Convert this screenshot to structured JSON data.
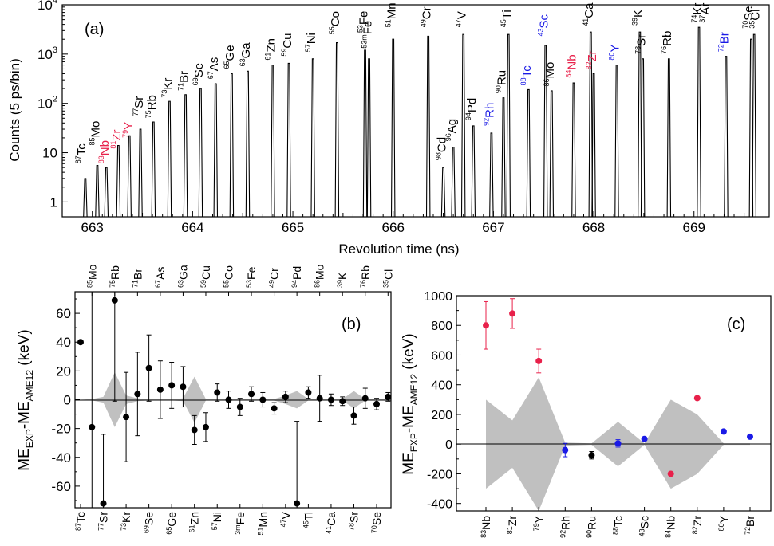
{
  "chart_data": [
    {
      "type": "bar",
      "panel_label": "(a)",
      "xlabel": "Revolution time (ns)",
      "ylabel": "Counts (5 ps/bin)",
      "xlim": [
        662.7,
        669.75
      ],
      "ylim": [
        0.5,
        10000
      ],
      "yscale": "log",
      "x_ticks": [
        663,
        664,
        665,
        666,
        667,
        668,
        669
      ],
      "y_ticks": [
        {
          "value": 1,
          "base": "1",
          "exp": ""
        },
        {
          "value": 10,
          "base": "10",
          "exp": ""
        },
        {
          "value": 100,
          "base": "10",
          "exp": "2"
        },
        {
          "value": 1000,
          "base": "10",
          "exp": "3"
        },
        {
          "value": 10000,
          "base": "10",
          "exp": "4"
        }
      ],
      "colors": {
        "black": "#000000",
        "red": "#e8204a",
        "blue": "#1a1ae6"
      },
      "peaks": [
        {
          "x": 662.93,
          "y": 3
        },
        {
          "x": 663.05,
          "y": 5.5
        },
        {
          "x": 663.14,
          "y": 5
        },
        {
          "x": 663.26,
          "y": 14
        },
        {
          "x": 663.37,
          "y": 22
        },
        {
          "x": 663.48,
          "y": 30
        },
        {
          "x": 663.61,
          "y": 42
        },
        {
          "x": 663.77,
          "y": 110
        },
        {
          "x": 663.93,
          "y": 150
        },
        {
          "x": 664.08,
          "y": 200
        },
        {
          "x": 664.23,
          "y": 250
        },
        {
          "x": 664.39,
          "y": 400
        },
        {
          "x": 664.55,
          "y": 450
        },
        {
          "x": 664.8,
          "y": 600
        },
        {
          "x": 664.96,
          "y": 650
        },
        {
          "x": 665.2,
          "y": 800
        },
        {
          "x": 665.44,
          "y": 1700
        },
        {
          "x": 665.72,
          "y": 1200
        },
        {
          "x": 665.76,
          "y": 800
        },
        {
          "x": 666.0,
          "y": 2000
        },
        {
          "x": 666.35,
          "y": 2300
        },
        {
          "x": 666.5,
          "y": 5
        },
        {
          "x": 666.6,
          "y": 13
        },
        {
          "x": 666.7,
          "y": 2500
        },
        {
          "x": 666.8,
          "y": 35
        },
        {
          "x": 666.98,
          "y": 25
        },
        {
          "x": 667.1,
          "y": 130
        },
        {
          "x": 667.15,
          "y": 2500
        },
        {
          "x": 667.35,
          "y": 190
        },
        {
          "x": 667.52,
          "y": 1500
        },
        {
          "x": 667.58,
          "y": 180
        },
        {
          "x": 667.8,
          "y": 260
        },
        {
          "x": 667.97,
          "y": 2800
        },
        {
          "x": 668.0,
          "y": 400
        },
        {
          "x": 668.23,
          "y": 600
        },
        {
          "x": 668.46,
          "y": 2800
        },
        {
          "x": 668.49,
          "y": 800
        },
        {
          "x": 668.75,
          "y": 800
        },
        {
          "x": 669.05,
          "y": 3500
        },
        {
          "x": 669.32,
          "y": 900
        },
        {
          "x": 669.57,
          "y": 2000
        },
        {
          "x": 669.6,
          "y": 2500
        }
      ],
      "labels": [
        {
          "mass": "87",
          "sym": "Tc",
          "color": "black",
          "x": 662.9,
          "y": 6
        },
        {
          "mass": "85",
          "sym": "Mo",
          "color": "black",
          "x": 663.04,
          "y": 14
        },
        {
          "mass": "83",
          "sym": "Nb",
          "color": "red",
          "x": 663.13,
          "y": 6
        },
        {
          "mass": "81",
          "sym": "Zr",
          "color": "red",
          "x": 663.25,
          "y": 12
        },
        {
          "mass": "79",
          "sym": "Y",
          "color": "red",
          "x": 663.37,
          "y": 20
        },
        {
          "mass": "77",
          "sym": "Sr",
          "color": "black",
          "x": 663.47,
          "y": 55
        },
        {
          "mass": "75",
          "sym": "Rb",
          "color": "black",
          "x": 663.6,
          "y": 50
        },
        {
          "mass": "73",
          "sym": "Kr",
          "color": "black",
          "x": 663.76,
          "y": 130
        },
        {
          "mass": "71",
          "sym": "Br",
          "color": "black",
          "x": 663.92,
          "y": 180
        },
        {
          "mass": "69",
          "sym": "Se",
          "color": "black",
          "x": 664.07,
          "y": 230
        },
        {
          "mass": "67",
          "sym": "As",
          "color": "black",
          "x": 664.22,
          "y": 310
        },
        {
          "mass": "65",
          "sym": "Ge",
          "color": "black",
          "x": 664.38,
          "y": 500
        },
        {
          "mass": "63",
          "sym": "Ga",
          "color": "black",
          "x": 664.54,
          "y": 560
        },
        {
          "mass": "61",
          "sym": "Zn",
          "color": "black",
          "x": 664.79,
          "y": 750
        },
        {
          "mass": "59",
          "sym": "Cu",
          "color": "black",
          "x": 664.95,
          "y": 900
        },
        {
          "mass": "57",
          "sym": "Ni",
          "color": "black",
          "x": 665.19,
          "y": 1100
        },
        {
          "mass": "55",
          "sym": "Co",
          "color": "black",
          "x": 665.43,
          "y": 2500
        },
        {
          "mass": "53",
          "sym": "Fe",
          "color": "black",
          "x": 665.71,
          "y": 2700
        },
        {
          "mass": "53m",
          "sym": "Fe",
          "color": "black",
          "x": 665.75,
          "y": 1300
        },
        {
          "mass": "51",
          "sym": "Mn",
          "color": "black",
          "x": 665.99,
          "y": 3500
        },
        {
          "mass": "49",
          "sym": "Cr",
          "color": "black",
          "x": 666.34,
          "y": 3500
        },
        {
          "mass": "98",
          "sym": "Cd",
          "color": "black",
          "x": 666.49,
          "y": 7
        },
        {
          "mass": "96",
          "sym": "Ag",
          "color": "black",
          "x": 666.59,
          "y": 17
        },
        {
          "mass": "47",
          "sym": "V",
          "color": "black",
          "x": 666.69,
          "y": 3500
        },
        {
          "mass": "94",
          "sym": "Pd",
          "color": "black",
          "x": 666.79,
          "y": 45
        },
        {
          "mass": "92",
          "sym": "Rh",
          "color": "blue",
          "x": 666.97,
          "y": 35
        },
        {
          "mass": "90",
          "sym": "Ru",
          "color": "black",
          "x": 667.09,
          "y": 160
        },
        {
          "mass": "45",
          "sym": "Ti",
          "color": "black",
          "x": 667.14,
          "y": 3500
        },
        {
          "mass": "88",
          "sym": "Tc",
          "color": "blue",
          "x": 667.34,
          "y": 230
        },
        {
          "mass": "43",
          "sym": "Sc",
          "color": "blue",
          "x": 667.51,
          "y": 2300
        },
        {
          "mass": "86",
          "sym": "Mo",
          "color": "black",
          "x": 667.57,
          "y": 220
        },
        {
          "mass": "84",
          "sym": "Nb",
          "color": "red",
          "x": 667.79,
          "y": 330
        },
        {
          "mass": "41",
          "sym": "Ca",
          "color": "black",
          "x": 667.96,
          "y": 3700
        },
        {
          "mass": "82",
          "sym": "Zr",
          "color": "red",
          "x": 667.99,
          "y": 480
        },
        {
          "mass": "80",
          "sym": "Y",
          "color": "blue",
          "x": 668.22,
          "y": 750
        },
        {
          "mass": "39",
          "sym": "K",
          "color": "black",
          "x": 668.45,
          "y": 3800
        },
        {
          "mass": "78",
          "sym": "Sr",
          "color": "black",
          "x": 668.48,
          "y": 1000
        },
        {
          "mass": "76",
          "sym": "Rb",
          "color": "black",
          "x": 668.74,
          "y": 1000
        },
        {
          "mass": "74",
          "sym": "Kr",
          "color": "black",
          "x": 669.04,
          "y": 4300
        },
        {
          "mass": "37",
          "sym": "Ar",
          "color": "black",
          "x": 669.12,
          "y": 4300
        },
        {
          "mass": "72",
          "sym": "Br",
          "color": "blue",
          "x": 669.31,
          "y": 1100
        },
        {
          "mass": "70",
          "sym": "Se",
          "color": "black",
          "x": 669.55,
          "y": 3300
        },
        {
          "mass": "35",
          "sym": "Cl",
          "color": "black",
          "x": 669.62,
          "y": 3300
        }
      ]
    },
    {
      "type": "scatter",
      "panel_label": "(b)",
      "ylabel_main": "ME",
      "ylabel_sub1": "EXP",
      "ylabel_mid": "-ME",
      "ylabel_sub2": "AME12",
      "ylabel_unit": "(keV)",
      "ylim": [
        -75,
        75
      ],
      "y_ticks": [
        -60,
        -40,
        -20,
        0,
        20,
        40,
        60
      ],
      "top_labels": [
        {
          "mass": "85",
          "sym": "Mo"
        },
        {
          "mass": "75",
          "sym": "Rb"
        },
        {
          "mass": "71",
          "sym": "Br"
        },
        {
          "mass": "67",
          "sym": "As"
        },
        {
          "mass": "63",
          "sym": "Ga"
        },
        {
          "mass": "59",
          "sym": "Cu"
        },
        {
          "mass": "55",
          "sym": "Co"
        },
        {
          "mass": "53",
          "sym": "Fe"
        },
        {
          "mass": "49",
          "sym": "Cr"
        },
        {
          "mass": "94",
          "sym": "Pd"
        },
        {
          "mass": "86",
          "sym": "Mo"
        },
        {
          "mass": "39",
          "sym": "K"
        },
        {
          "mass": "76",
          "sym": "Rb"
        },
        {
          "mass": "35",
          "sym": "Cl"
        }
      ],
      "bottom_labels": [
        {
          "mass": "87",
          "sym": "Tc"
        },
        {
          "mass": "77",
          "sym": "Sr"
        },
        {
          "mass": "73",
          "sym": "Kr"
        },
        {
          "mass": "69",
          "sym": "Se"
        },
        {
          "mass": "65",
          "sym": "Ge"
        },
        {
          "mass": "61",
          "sym": "Zn"
        },
        {
          "mass": "57",
          "sym": "Ni"
        },
        {
          "mass": "3m",
          "sym": "Fe"
        },
        {
          "mass": "51",
          "sym": "Mn"
        },
        {
          "mass": "47",
          "sym": "V"
        },
        {
          "mass": "45",
          "sym": "Ti"
        },
        {
          "mass": "41",
          "sym": "Ca"
        },
        {
          "mass": "78",
          "sym": "Sr"
        },
        {
          "mass": "70",
          "sym": "Se"
        }
      ],
      "points": [
        {
          "i": 0,
          "y": 40,
          "err": 0
        },
        {
          "i": 1,
          "y": -19,
          "err": 200
        },
        {
          "i": 2,
          "y": -72,
          "err": 48
        },
        {
          "i": 3,
          "y": 69,
          "err": 70
        },
        {
          "i": 4,
          "y": -12,
          "err": 31
        },
        {
          "i": 5,
          "y": 4,
          "err": 29
        },
        {
          "i": 6,
          "y": 22,
          "err": 23
        },
        {
          "i": 7,
          "y": 7,
          "err": 20
        },
        {
          "i": 8,
          "y": 10,
          "err": 16
        },
        {
          "i": 9,
          "y": 9,
          "err": 14
        },
        {
          "i": 10,
          "y": -21,
          "err": 10
        },
        {
          "i": 11,
          "y": -19,
          "err": 10
        },
        {
          "i": 12,
          "y": 5,
          "err": 6
        },
        {
          "i": 13,
          "y": 0,
          "err": 6
        },
        {
          "i": 14,
          "y": -5,
          "err": 6
        },
        {
          "i": 15,
          "y": 4,
          "err": 5
        },
        {
          "i": 16,
          "y": 0,
          "err": 5
        },
        {
          "i": 17,
          "y": -6,
          "err": 4
        },
        {
          "i": 18,
          "y": 2,
          "err": 4
        },
        {
          "i": 19,
          "y": -72,
          "err": 57
        },
        {
          "i": 20,
          "y": 5,
          "err": 4
        },
        {
          "i": 21,
          "y": 1,
          "err": 16
        },
        {
          "i": 22,
          "y": 0,
          "err": 4
        },
        {
          "i": 23,
          "y": -1,
          "err": 3
        },
        {
          "i": 24,
          "y": -11,
          "err": 6
        },
        {
          "i": 25,
          "y": 1,
          "err": 7
        },
        {
          "i": 26,
          "y": -3,
          "err": 4
        },
        {
          "i": 27,
          "y": 2,
          "err": 3
        }
      ],
      "band_halfwidth": [
        0,
        0.5,
        2,
        19,
        3,
        1,
        0.5,
        0.5,
        0.5,
        1,
        16,
        0.5,
        0.5,
        0.5,
        0.5,
        0.5,
        0.5,
        0.5,
        3,
        6,
        0.5,
        0.5,
        0.5,
        0.5,
        6,
        0.5,
        0.5,
        0.5
      ]
    },
    {
      "type": "scatter",
      "panel_label": "(c)",
      "ylabel_main": "ME",
      "ylabel_sub1": "EXP",
      "ylabel_mid": "-ME",
      "ylabel_sub2": "AME12",
      "ylabel_unit": "(keV)",
      "ylim": [
        -450,
        1000
      ],
      "y_ticks": [
        -400,
        -200,
        0,
        200,
        400,
        600,
        800,
        1000
      ],
      "categories": [
        {
          "mass": "83",
          "sym": "Nb"
        },
        {
          "mass": "81",
          "sym": "Zr"
        },
        {
          "mass": "79",
          "sym": "Y"
        },
        {
          "mass": "92",
          "sym": "Rh"
        },
        {
          "mass": "90",
          "sym": "Ru"
        },
        {
          "mass": "88",
          "sym": "Tc"
        },
        {
          "mass": "43",
          "sym": "Sc"
        },
        {
          "mass": "84",
          "sym": "Nb"
        },
        {
          "mass": "82",
          "sym": "Zr"
        },
        {
          "mass": "80",
          "sym": "Y"
        },
        {
          "mass": "72",
          "sym": "Br"
        }
      ],
      "points": [
        {
          "y": 800,
          "err": 160,
          "color": "red"
        },
        {
          "y": 880,
          "err": 100,
          "color": "red"
        },
        {
          "y": 560,
          "err": 80,
          "color": "red"
        },
        {
          "y": -40,
          "err": 45,
          "color": "blue"
        },
        {
          "y": -75,
          "err": 25,
          "color": "black"
        },
        {
          "y": 5,
          "err": 25,
          "color": "blue"
        },
        {
          "y": 35,
          "err": 12,
          "color": "blue"
        },
        {
          "y": -200,
          "err": 8,
          "color": "red"
        },
        {
          "y": 310,
          "err": 8,
          "color": "red"
        },
        {
          "y": 85,
          "err": 8,
          "color": "blue"
        },
        {
          "y": 50,
          "err": 8,
          "color": "blue"
        }
      ],
      "band_halfwidth": [
        300,
        160,
        450,
        10,
        5,
        150,
        5,
        300,
        200,
        5,
        5
      ]
    }
  ]
}
